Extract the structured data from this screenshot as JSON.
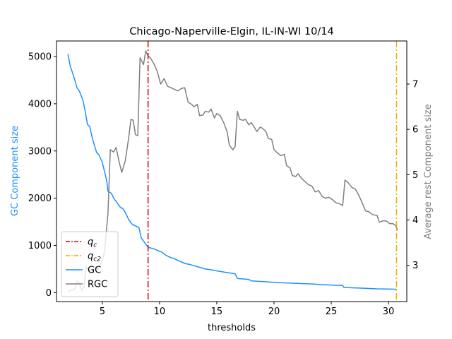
{
  "chart_data": {
    "type": "line",
    "title": "Chicago-Naperville-Elgin, IL-IN-WI 10/14",
    "xlabel": "thresholds",
    "ylabel_left": "GC Component size",
    "ylabel_right": "Average rest Component size",
    "xlim": [
      1.0,
      31.6
    ],
    "ylim_left": [
      -190,
      5330
    ],
    "ylim_right": [
      2.2,
      7.95
    ],
    "xticks": [
      5,
      10,
      15,
      20,
      25,
      30
    ],
    "yticks_left": [
      0,
      1000,
      2000,
      3000,
      4000,
      5000
    ],
    "yticks_right": [
      3,
      4,
      5,
      6,
      7
    ],
    "colors": {
      "gc": "#1e90ff",
      "rgc": "#808080",
      "qc": "#dd0000",
      "qc2": "#ffa500",
      "left_label": "#1e90ff",
      "right_label": "#808080"
    },
    "vlines": [
      {
        "label": "q_c",
        "x": 9.0,
        "color": "#dd0000"
      },
      {
        "label": "q_c2",
        "x": 30.7,
        "color": "#ffa500"
      }
    ],
    "legend": {
      "placement": "lower-left",
      "entries": [
        {
          "label": "q",
          "sub": "c",
          "style": "dashdot",
          "color": "#dd0000"
        },
        {
          "label": "q",
          "sub": "c2",
          "style": "dashdot",
          "color": "#ffa500"
        },
        {
          "label": "GC",
          "style": "solid",
          "color": "#1e90ff"
        },
        {
          "label": "RGC",
          "style": "solid",
          "color": "#808080"
        }
      ]
    },
    "series": [
      {
        "name": "GC",
        "axis": "left",
        "points": [
          [
            2.0,
            5050
          ],
          [
            2.2,
            4800
          ],
          [
            2.5,
            4580
          ],
          [
            2.8,
            4330
          ],
          [
            3.0,
            4270
          ],
          [
            3.3,
            4080
          ],
          [
            3.5,
            3850
          ],
          [
            3.7,
            3560
          ],
          [
            3.9,
            3520
          ],
          [
            4.1,
            3300
          ],
          [
            4.5,
            2970
          ],
          [
            4.7,
            2920
          ],
          [
            5.0,
            2760
          ],
          [
            5.2,
            2560
          ],
          [
            5.4,
            2350
          ],
          [
            5.5,
            2150
          ],
          [
            5.8,
            2100
          ],
          [
            6.0,
            2000
          ],
          [
            6.3,
            1900
          ],
          [
            6.6,
            1800
          ],
          [
            6.8,
            1780
          ],
          [
            7.0,
            1700
          ],
          [
            7.3,
            1550
          ],
          [
            7.6,
            1450
          ],
          [
            8.0,
            1400
          ],
          [
            8.2,
            1380
          ],
          [
            8.4,
            1160
          ],
          [
            8.7,
            1060
          ],
          [
            9.0,
            960
          ],
          [
            9.3,
            940
          ],
          [
            9.6,
            920
          ],
          [
            10.0,
            870
          ],
          [
            10.2,
            860
          ],
          [
            10.5,
            800
          ],
          [
            10.8,
            760
          ],
          [
            11.0,
            740
          ],
          [
            11.3,
            720
          ],
          [
            11.6,
            680
          ],
          [
            12.0,
            640
          ],
          [
            12.3,
            610
          ],
          [
            12.6,
            600
          ],
          [
            13.0,
            570
          ],
          [
            13.3,
            550
          ],
          [
            13.6,
            530
          ],
          [
            14.0,
            500
          ],
          [
            14.3,
            490
          ],
          [
            14.6,
            480
          ],
          [
            15.0,
            460
          ],
          [
            15.5,
            440
          ],
          [
            16.0,
            420
          ],
          [
            16.3,
            410
          ],
          [
            16.6,
            400
          ],
          [
            16.8,
            300
          ],
          [
            17.0,
            295
          ],
          [
            17.5,
            285
          ],
          [
            17.8,
            280
          ],
          [
            18.0,
            250
          ],
          [
            18.5,
            240
          ],
          [
            19.0,
            235
          ],
          [
            19.5,
            225
          ],
          [
            20.0,
            220
          ],
          [
            20.5,
            210
          ],
          [
            21.0,
            205
          ],
          [
            21.5,
            200
          ],
          [
            22.0,
            195
          ],
          [
            22.5,
            190
          ],
          [
            23.0,
            185
          ],
          [
            23.5,
            180
          ],
          [
            24.0,
            170
          ],
          [
            24.5,
            165
          ],
          [
            25.0,
            160
          ],
          [
            25.5,
            155
          ],
          [
            26.0,
            150
          ],
          [
            26.1,
            110
          ],
          [
            26.5,
            105
          ],
          [
            27.0,
            100
          ],
          [
            27.5,
            95
          ],
          [
            28.0,
            90
          ],
          [
            28.5,
            85
          ],
          [
            29.0,
            80
          ],
          [
            29.5,
            78
          ],
          [
            30.0,
            75
          ],
          [
            30.5,
            72
          ],
          [
            30.7,
            70
          ]
        ]
      },
      {
        "name": "RGC",
        "axis": "right",
        "points": [
          [
            2.0,
            2.42
          ],
          [
            2.3,
            2.45
          ],
          [
            2.6,
            2.48
          ],
          [
            2.8,
            2.65
          ],
          [
            3.0,
            2.6
          ],
          [
            3.2,
            2.45
          ],
          [
            3.4,
            2.52
          ],
          [
            3.6,
            2.98
          ],
          [
            3.8,
            2.88
          ],
          [
            4.0,
            2.92
          ],
          [
            4.2,
            2.85
          ],
          [
            4.4,
            2.98
          ],
          [
            4.6,
            2.9
          ],
          [
            4.8,
            3.0
          ],
          [
            5.0,
            3.1
          ],
          [
            5.2,
            3.32
          ],
          [
            5.5,
            4.15
          ],
          [
            5.7,
            5.55
          ],
          [
            6.0,
            5.5
          ],
          [
            6.2,
            5.6
          ],
          [
            6.5,
            5.25
          ],
          [
            6.7,
            5.05
          ],
          [
            7.0,
            5.3
          ],
          [
            7.3,
            5.8
          ],
          [
            7.5,
            6.22
          ],
          [
            7.7,
            6.2
          ],
          [
            7.9,
            5.88
          ],
          [
            8.1,
            5.86
          ],
          [
            8.3,
            7.58
          ],
          [
            8.6,
            7.43
          ],
          [
            8.8,
            7.73
          ],
          [
            9.0,
            7.62
          ],
          [
            9.2,
            7.58
          ],
          [
            9.5,
            7.45
          ],
          [
            9.8,
            7.28
          ],
          [
            10.1,
            7.0
          ],
          [
            10.4,
            7.12
          ],
          [
            10.7,
            6.95
          ],
          [
            11.0,
            6.92
          ],
          [
            11.3,
            6.88
          ],
          [
            11.6,
            6.85
          ],
          [
            11.9,
            6.9
          ],
          [
            12.2,
            6.92
          ],
          [
            12.5,
            6.6
          ],
          [
            12.8,
            6.55
          ],
          [
            13.0,
            6.5
          ],
          [
            13.3,
            6.55
          ],
          [
            13.5,
            6.3
          ],
          [
            13.8,
            6.32
          ],
          [
            14.0,
            6.4
          ],
          [
            14.3,
            6.38
          ],
          [
            14.5,
            6.45
          ],
          [
            14.8,
            6.25
          ],
          [
            15.0,
            6.35
          ],
          [
            15.3,
            6.3
          ],
          [
            15.6,
            6.15
          ],
          [
            15.9,
            5.95
          ],
          [
            16.1,
            5.65
          ],
          [
            16.4,
            5.55
          ],
          [
            16.6,
            5.62
          ],
          [
            16.8,
            6.4
          ],
          [
            17.0,
            6.22
          ],
          [
            17.3,
            6.2
          ],
          [
            17.5,
            6.22
          ],
          [
            17.8,
            6.1
          ],
          [
            18.0,
            6.15
          ],
          [
            18.2,
            6.08
          ],
          [
            18.5,
            5.95
          ],
          [
            18.8,
            6.05
          ],
          [
            19.0,
            6.02
          ],
          [
            19.3,
            5.95
          ],
          [
            19.5,
            5.8
          ],
          [
            19.8,
            5.78
          ],
          [
            20.0,
            5.55
          ],
          [
            20.3,
            5.48
          ],
          [
            20.6,
            5.42
          ],
          [
            20.9,
            5.45
          ],
          [
            21.1,
            5.2
          ],
          [
            21.4,
            5.15
          ],
          [
            21.6,
            4.98
          ],
          [
            21.9,
            4.96
          ],
          [
            22.1,
            5.02
          ],
          [
            22.4,
            4.92
          ],
          [
            22.7,
            4.85
          ],
          [
            23.0,
            4.78
          ],
          [
            23.3,
            4.75
          ],
          [
            23.6,
            4.62
          ],
          [
            23.9,
            4.65
          ],
          [
            24.2,
            4.52
          ],
          [
            24.5,
            4.48
          ],
          [
            24.8,
            4.5
          ],
          [
            25.1,
            4.45
          ],
          [
            25.4,
            4.38
          ],
          [
            25.7,
            4.36
          ],
          [
            26.0,
            4.32
          ],
          [
            26.2,
            4.88
          ],
          [
            26.5,
            4.82
          ],
          [
            26.8,
            4.72
          ],
          [
            27.1,
            4.68
          ],
          [
            27.4,
            4.55
          ],
          [
            27.7,
            4.38
          ],
          [
            28.0,
            4.2
          ],
          [
            28.3,
            4.18
          ],
          [
            28.6,
            4.12
          ],
          [
            29.0,
            4.1
          ],
          [
            29.2,
            3.95
          ],
          [
            29.5,
            3.98
          ],
          [
            29.8,
            3.98
          ],
          [
            30.1,
            3.92
          ],
          [
            30.4,
            3.92
          ],
          [
            30.6,
            3.88
          ],
          [
            30.8,
            3.78
          ]
        ]
      }
    ]
  }
}
